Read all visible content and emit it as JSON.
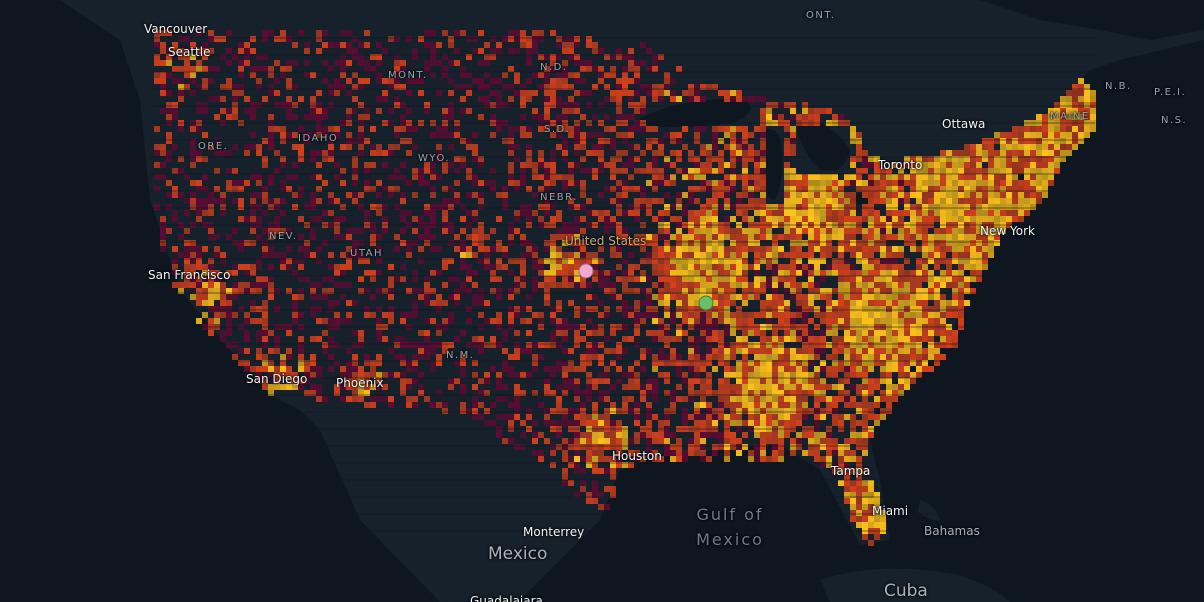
{
  "map": {
    "labels": {
      "cities": [
        "Vancouver",
        "Seattle",
        "Ottawa",
        "Toronto",
        "New York",
        "San Francisco",
        "San Diego",
        "Phoenix",
        "Houston",
        "Tampa",
        "Miami",
        "Monterrey",
        "Guadalajara"
      ],
      "states": [
        "ONT.",
        "MONT.",
        "IDAHO",
        "ORE.",
        "WYO.",
        "NEV.",
        "UTAH",
        "N.M.",
        "N.D.",
        "S.D.",
        "NEBR.",
        "N.B.",
        "P.E.I.",
        "N.S.",
        "MAINE"
      ],
      "countries": [
        "Mexico",
        "Cuba",
        "Bahamas",
        "United States"
      ],
      "water": "Gulf of Mexico"
    },
    "markers": [
      {
        "name": "pink-marker",
        "color": "#f0a8d0"
      },
      {
        "name": "green-marker",
        "color": "#6abf69"
      }
    ],
    "colors": {
      "background": "#0e1620",
      "land": "#17212b",
      "heat_low": "#5e0b32",
      "heat_mid": "#d2401c",
      "heat_high": "#ffc21a"
    }
  }
}
